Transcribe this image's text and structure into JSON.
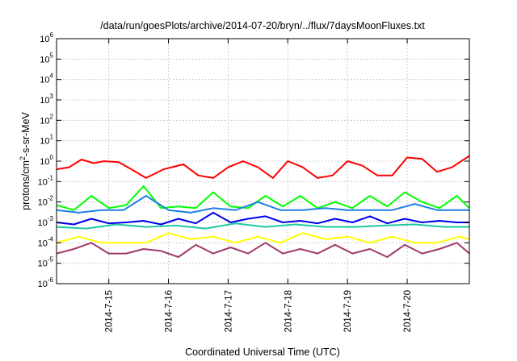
{
  "chart_data": {
    "type": "line",
    "title": "/data/run/goesPlots/archive/2014-07-20/bryn/../flux/7daysMoonFluxes.txt",
    "xlabel": "Coordinated Universal Time (UTC)",
    "ylabel_parts": [
      "protons/cm",
      "2",
      "-s-sr-MeV"
    ],
    "yscale": "log",
    "ylim": [
      1e-06,
      1000000.0
    ],
    "y_ticks": [
      {
        "base": "10",
        "exp": "-6",
        "value": 1e-06
      },
      {
        "base": "10",
        "exp": "-5",
        "value": 1e-05
      },
      {
        "base": "10",
        "exp": "-4",
        "value": 0.0001
      },
      {
        "base": "10",
        "exp": "-3",
        "value": 0.001
      },
      {
        "base": "10",
        "exp": "-2",
        "value": 0.01
      },
      {
        "base": "10",
        "exp": "-1",
        "value": 0.1
      },
      {
        "base": "10",
        "exp": "0",
        "value": 1.0
      },
      {
        "base": "10",
        "exp": "1",
        "value": 10.0
      },
      {
        "base": "10",
        "exp": "2",
        "value": 100.0
      },
      {
        "base": "10",
        "exp": "3",
        "value": 1000.0
      },
      {
        "base": "10",
        "exp": "4",
        "value": 10000.0
      },
      {
        "base": "10",
        "exp": "5",
        "value": 100000.0
      },
      {
        "base": "10",
        "exp": "6",
        "value": 1000000.0
      }
    ],
    "xlim": [
      "2014-07-14T03:00",
      "2014-07-21T01:00"
    ],
    "x_ticks": [
      {
        "label": "2014-7-15",
        "value": "2014-07-15T00:00"
      },
      {
        "label": "2014-7-16",
        "value": "2014-07-16T00:00"
      },
      {
        "label": "2014-7-17",
        "value": "2014-07-17T00:00"
      },
      {
        "label": "2014-7-18",
        "value": "2014-07-18T00:00"
      },
      {
        "label": "2014-7-19",
        "value": "2014-07-19T00:00"
      },
      {
        "label": "2014-7-20",
        "value": "2014-07-20T00:00"
      }
    ],
    "grid": true,
    "series": [
      {
        "color": "#ff0000",
        "x": [
          "2014-07-14T03:00",
          "2014-07-14T08:00",
          "2014-07-14T13:00",
          "2014-07-14T18:00",
          "2014-07-14T22:00",
          "2014-07-15T04:00",
          "2014-07-15T10:00",
          "2014-07-15T15:00",
          "2014-07-15T22:00",
          "2014-07-16T06:00",
          "2014-07-16T12:00",
          "2014-07-16T18:00",
          "2014-07-17T00:00",
          "2014-07-17T06:00",
          "2014-07-17T12:00",
          "2014-07-17T18:00",
          "2014-07-18T00:00",
          "2014-07-18T06:00",
          "2014-07-18T12:00",
          "2014-07-18T18:00",
          "2014-07-19T00:00",
          "2014-07-19T06:00",
          "2014-07-19T12:00",
          "2014-07-19T18:00",
          "2014-07-20T00:00",
          "2014-07-20T06:00",
          "2014-07-20T12:00",
          "2014-07-20T18:00",
          "2014-07-21T01:00"
        ],
        "y": [
          0.4,
          0.5,
          1.2,
          0.8,
          1.0,
          0.9,
          0.35,
          0.15,
          0.4,
          0.7,
          0.2,
          0.15,
          0.5,
          1.0,
          0.5,
          0.15,
          1.0,
          0.5,
          0.15,
          0.2,
          1.0,
          0.6,
          0.2,
          0.2,
          1.5,
          1.3,
          0.3,
          0.5,
          1.8
        ]
      },
      {
        "color": "#00ff00",
        "x": [
          "2014-07-14T03:00",
          "2014-07-14T10:00",
          "2014-07-14T17:00",
          "2014-07-15T00:00",
          "2014-07-15T07:00",
          "2014-07-15T14:00",
          "2014-07-15T21:00",
          "2014-07-16T04:00",
          "2014-07-16T11:00",
          "2014-07-16T18:00",
          "2014-07-17T01:00",
          "2014-07-17T08:00",
          "2014-07-17T15:00",
          "2014-07-17T22:00",
          "2014-07-18T05:00",
          "2014-07-18T12:00",
          "2014-07-18T19:00",
          "2014-07-19T02:00",
          "2014-07-19T09:00",
          "2014-07-19T16:00",
          "2014-07-19T23:00",
          "2014-07-20T06:00",
          "2014-07-20T13:00",
          "2014-07-20T20:00",
          "2014-07-21T01:00"
        ],
        "y": [
          0.007,
          0.004,
          0.02,
          0.005,
          0.007,
          0.06,
          0.005,
          0.006,
          0.005,
          0.03,
          0.006,
          0.005,
          0.02,
          0.006,
          0.02,
          0.005,
          0.01,
          0.005,
          0.02,
          0.006,
          0.03,
          0.01,
          0.005,
          0.02,
          0.005
        ]
      },
      {
        "color": "#1e7fe6",
        "x": [
          "2014-07-14T03:00",
          "2014-07-14T12:00",
          "2014-07-14T21:00",
          "2014-07-15T06:00",
          "2014-07-15T15:00",
          "2014-07-16T00:00",
          "2014-07-16T09:00",
          "2014-07-16T18:00",
          "2014-07-17T03:00",
          "2014-07-17T12:00",
          "2014-07-17T21:00",
          "2014-07-18T06:00",
          "2014-07-18T15:00",
          "2014-07-19T00:00",
          "2014-07-19T09:00",
          "2014-07-19T18:00",
          "2014-07-20T03:00",
          "2014-07-20T12:00",
          "2014-07-20T21:00",
          "2014-07-21T01:00"
        ],
        "y": [
          0.004,
          0.003,
          0.004,
          0.004,
          0.02,
          0.004,
          0.003,
          0.005,
          0.004,
          0.01,
          0.004,
          0.004,
          0.005,
          0.004,
          0.004,
          0.004,
          0.008,
          0.004,
          0.004,
          0.004
        ]
      },
      {
        "color": "#0000ee",
        "x": [
          "2014-07-14T03:00",
          "2014-07-14T10:00",
          "2014-07-14T17:00",
          "2014-07-15T00:00",
          "2014-07-15T07:00",
          "2014-07-15T14:00",
          "2014-07-15T21:00",
          "2014-07-16T04:00",
          "2014-07-16T11:00",
          "2014-07-16T18:00",
          "2014-07-17T01:00",
          "2014-07-17T08:00",
          "2014-07-17T15:00",
          "2014-07-17T22:00",
          "2014-07-18T05:00",
          "2014-07-18T12:00",
          "2014-07-18T19:00",
          "2014-07-19T02:00",
          "2014-07-19T09:00",
          "2014-07-19T16:00",
          "2014-07-19T23:00",
          "2014-07-20T06:00",
          "2014-07-20T13:00",
          "2014-07-20T20:00",
          "2014-07-21T01:00"
        ],
        "y": [
          0.001,
          0.0008,
          0.0015,
          0.0009,
          0.001,
          0.0012,
          0.0008,
          0.0015,
          0.0009,
          0.003,
          0.001,
          0.0015,
          0.002,
          0.001,
          0.0012,
          0.0009,
          0.0015,
          0.001,
          0.002,
          0.0009,
          0.0015,
          0.001,
          0.0012,
          0.001,
          0.001
        ]
      },
      {
        "color": "#20c8a0",
        "x": [
          "2014-07-14T03:00",
          "2014-07-14T15:00",
          "2014-07-15T03:00",
          "2014-07-15T15:00",
          "2014-07-16T03:00",
          "2014-07-16T15:00",
          "2014-07-17T03:00",
          "2014-07-17T15:00",
          "2014-07-18T03:00",
          "2014-07-18T15:00",
          "2014-07-19T03:00",
          "2014-07-19T15:00",
          "2014-07-20T03:00",
          "2014-07-20T15:00",
          "2014-07-21T01:00"
        ],
        "y": [
          0.0006,
          0.0005,
          0.0008,
          0.0006,
          0.0007,
          0.0005,
          0.0009,
          0.0006,
          0.0008,
          0.0006,
          0.0006,
          0.0007,
          0.0008,
          0.0006,
          0.0006
        ]
      },
      {
        "color": "#ffff00",
        "x": [
          "2014-07-14T03:00",
          "2014-07-14T12:00",
          "2014-07-14T21:00",
          "2014-07-15T06:00",
          "2014-07-15T15:00",
          "2014-07-16T00:00",
          "2014-07-16T09:00",
          "2014-07-16T18:00",
          "2014-07-17T03:00",
          "2014-07-17T12:00",
          "2014-07-17T21:00",
          "2014-07-18T06:00",
          "2014-07-18T15:00",
          "2014-07-19T00:00",
          "2014-07-19T09:00",
          "2014-07-19T18:00",
          "2014-07-20T03:00",
          "2014-07-20T12:00",
          "2014-07-20T21:00",
          "2014-07-21T01:00"
        ],
        "y": [
          0.0001,
          0.0002,
          0.0001,
          0.0001,
          0.0001,
          0.0003,
          0.00015,
          0.0002,
          0.0001,
          0.0002,
          0.0001,
          0.0003,
          0.00015,
          0.0002,
          0.0001,
          0.0002,
          0.0001,
          0.0001,
          0.0002,
          0.00015
        ]
      },
      {
        "color": "#a03a6a",
        "x": [
          "2014-07-14T03:00",
          "2014-07-14T10:00",
          "2014-07-14T17:00",
          "2014-07-15T00:00",
          "2014-07-15T07:00",
          "2014-07-15T14:00",
          "2014-07-15T21:00",
          "2014-07-16T04:00",
          "2014-07-16T11:00",
          "2014-07-16T18:00",
          "2014-07-17T01:00",
          "2014-07-17T08:00",
          "2014-07-17T15:00",
          "2014-07-17T22:00",
          "2014-07-18T05:00",
          "2014-07-18T12:00",
          "2014-07-18T19:00",
          "2014-07-19T02:00",
          "2014-07-19T09:00",
          "2014-07-19T16:00",
          "2014-07-19T23:00",
          "2014-07-20T06:00",
          "2014-07-20T13:00",
          "2014-07-20T20:00",
          "2014-07-21T01:00"
        ],
        "y": [
          3e-05,
          5e-05,
          0.0001,
          3e-05,
          3e-05,
          5e-05,
          4e-05,
          2e-05,
          8e-05,
          3e-05,
          6e-05,
          3e-05,
          0.0001,
          3e-05,
          5e-05,
          3e-05,
          8e-05,
          3e-05,
          5e-05,
          2e-05,
          8e-05,
          3e-05,
          5e-05,
          0.0001,
          3e-05
        ]
      }
    ]
  }
}
